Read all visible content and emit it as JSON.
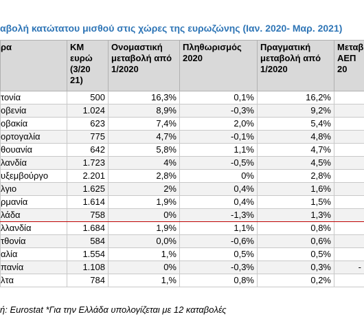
{
  "title": "αβολή κατώτατου μισθού στις χώρες της ευρωζώνης (Ιαν. 2020- Μαρ. 2021)",
  "columns": [
    "ρα",
    "ΚΜ ευρώ (3/20 21)",
    "Ονομαστική μεταβολή από 1/2020",
    "Πληθωρισμός 2020",
    "Πραγματική μεταβολή από 1/2020",
    "Μεταβ ΑΕΠ 20"
  ],
  "rows": [
    {
      "country": "τονία",
      "km": "500",
      "nominal": "16,3%",
      "inflation": "0,1%",
      "real": "16,2%",
      "gdp": ""
    },
    {
      "country": "οβενία",
      "km": "1.024",
      "nominal": "8,9%",
      "inflation": "-0,3%",
      "real": "9,2%",
      "gdp": ""
    },
    {
      "country": "οβακία",
      "km": "623",
      "nominal": "7,4%",
      "inflation": "2,0%",
      "real": "5,4%",
      "gdp": ""
    },
    {
      "country": "ορτογαλία",
      "km": "775",
      "nominal": "4,7%",
      "inflation": "-0,1%",
      "real": "4,8%",
      "gdp": ""
    },
    {
      "country": "θουανία",
      "km": "642",
      "nominal": "5,8%",
      "inflation": "1,1%",
      "real": "4,7%",
      "gdp": ""
    },
    {
      "country": "λανδία",
      "km": "1.723",
      "nominal": "4%",
      "inflation": "-0,5%",
      "real": "4,5%",
      "gdp": ""
    },
    {
      "country": "υξεμβούργο",
      "km": "2.201",
      "nominal": "2,8%",
      "inflation": "0%",
      "real": "2,8%",
      "gdp": ""
    },
    {
      "country": "λγιο",
      "km": "1.625",
      "nominal": "2%",
      "inflation": "0,4%",
      "real": "1,6%",
      "gdp": ""
    },
    {
      "country": "ρμανία",
      "km": "1.614",
      "nominal": "1,9%",
      "inflation": "0,4%",
      "real": "1,5%",
      "gdp": ""
    },
    {
      "country": "λάδα",
      "km": "758",
      "nominal": "0%",
      "inflation": "-1,3%",
      "real": "1,3%",
      "gdp": ""
    },
    {
      "country": "λλανδία",
      "km": "1.684",
      "nominal": "1,9%",
      "inflation": "1,1%",
      "real": "0,8%",
      "gdp": ""
    },
    {
      "country": "τθονία",
      "km": "584",
      "nominal": "0,0%",
      "inflation": "-0,6%",
      "real": "0,6%",
      "gdp": ""
    },
    {
      "country": "αλία",
      "km": "1.554",
      "nominal": "1,%",
      "inflation": "0,5%",
      "real": "0,5%",
      "gdp": ""
    },
    {
      "country": "πανία",
      "km": "1.108",
      "nominal": "0%",
      "inflation": "-0,3%",
      "real": "0,3%",
      "gdp": "-"
    },
    {
      "country": "λτα",
      "km": "784",
      "nominal": "1,%",
      "inflation": "0,8%",
      "real": "0,2%",
      "gdp": ""
    }
  ],
  "source": "ή: Eurostat *Για την Ελλάδα υπολογίζεται με 12 καταβολές",
  "colors": {
    "title": "#2e75b6",
    "header_bg": "#d9d9d9",
    "highlight_border": "#c00000"
  }
}
